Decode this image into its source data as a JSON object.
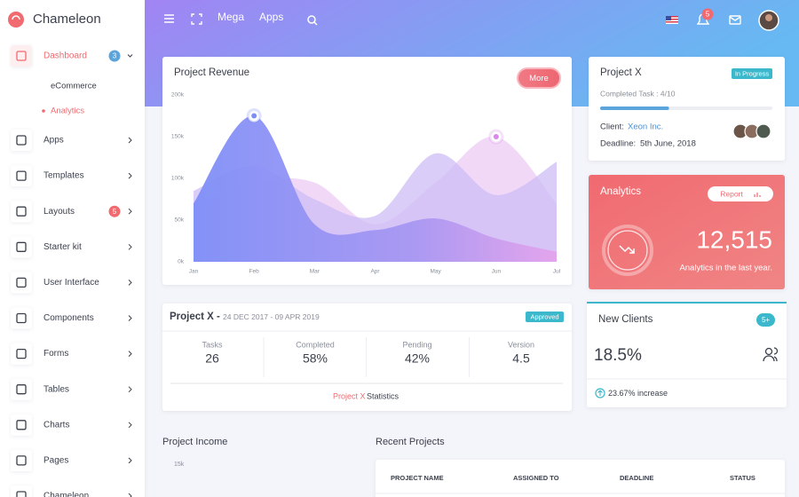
{
  "sidebar": {
    "brand": "Chameleon",
    "menu": [
      {
        "label": "Dashboard",
        "badge": "3"
      },
      {
        "label": "Apps"
      },
      {
        "label": "Templates"
      },
      {
        "label": "Layouts",
        "badge": "5"
      },
      {
        "label": "Starter kit"
      },
      {
        "label": "User Interface"
      },
      {
        "label": "Components"
      },
      {
        "label": "Forms"
      },
      {
        "label": "Tables"
      },
      {
        "label": "Charts"
      },
      {
        "label": "Pages"
      },
      {
        "label": "Chameleon"
      }
    ],
    "submenu": [
      "eCommerce",
      "Analytics"
    ]
  },
  "topbar": {
    "links": [
      "Mega",
      "Apps"
    ],
    "notifications": "5"
  },
  "revenue": {
    "title": "Project Revenue",
    "button": "More",
    "chart": {
      "type": "area",
      "categories": [
        "Jan",
        "Feb",
        "Mar",
        "Apr",
        "May",
        "Jun",
        "Jul"
      ],
      "ylim": [
        0,
        200000
      ],
      "yticks": [
        {
          "value": 0,
          "label": "0k"
        },
        {
          "value": 50000,
          "label": "50k"
        },
        {
          "value": 100000,
          "label": "100k"
        },
        {
          "value": 150000,
          "label": "150k"
        },
        {
          "value": 200000,
          "label": "200k"
        }
      ],
      "series": [
        {
          "color": "#7d8ff6",
          "values": [
            70000,
            175000,
            45000,
            38000,
            52000,
            28000,
            12000
          ]
        },
        {
          "color": "#cdbdf5",
          "values": [
            85000,
            115000,
            75000,
            55000,
            130000,
            80000,
            120000
          ]
        },
        {
          "color": "#ecc8f3",
          "values": [
            65000,
            95000,
            95000,
            45000,
            95000,
            150000,
            70000
          ]
        }
      ]
    }
  },
  "project_card": {
    "title": "Project X",
    "status": "In Progress",
    "progress_label": "Completed Task : 4/10",
    "progress": {
      "done": 4,
      "total": 10
    },
    "client_label": "Client:",
    "client": "Xeon Inc.",
    "deadline_label": "Deadline:",
    "deadline": "5th June, 2018"
  },
  "analytics": {
    "title": "Analytics",
    "button": "Report",
    "value": "12,515",
    "caption": "Analytics in the last year."
  },
  "project_stats": {
    "title": "Project X -",
    "dates": "24 DEC 2017 - 09 APR 2019",
    "status": "Approved",
    "stats": [
      {
        "label": "Tasks",
        "value": "26"
      },
      {
        "label": "Completed",
        "value": "58%"
      },
      {
        "label": "Pending",
        "value": "42%"
      },
      {
        "label": "Version",
        "value": "4.5"
      }
    ],
    "footer_link": "Project X",
    "footer_text": "Statistics"
  },
  "new_clients": {
    "title": "New Clients",
    "badge": "5+",
    "value": "18.5%",
    "change": "23.67% increase"
  },
  "income": {
    "title": "Project Income",
    "ytick": "15k"
  },
  "recent": {
    "title": "Recent Projects",
    "columns": [
      "PROJECT NAME",
      "ASSIGNED TO",
      "DEADLINE",
      "STATUS"
    ]
  }
}
